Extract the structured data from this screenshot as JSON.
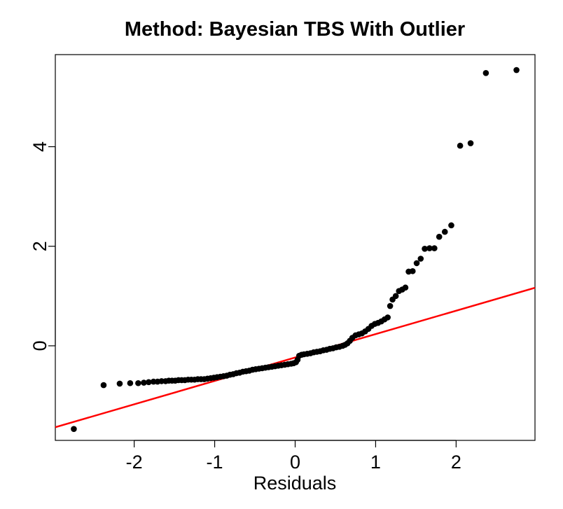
{
  "chart_data": {
    "type": "scatter",
    "title": "Method: Bayesian TBS With Outlier",
    "xlabel": "Residuals",
    "ylabel": "",
    "xlim": [
      -2.98,
      2.98
    ],
    "ylim": [
      -1.9,
      5.85
    ],
    "xticks": [
      -2,
      -1,
      0,
      1,
      2
    ],
    "xtick_labels": [
      "-2",
      "-1",
      "0",
      "1",
      "2"
    ],
    "yticks": [
      0,
      2,
      4
    ],
    "ytick_labels": [
      "0",
      "2",
      "4"
    ],
    "grid": false,
    "legend": "none",
    "point_color": "#000000",
    "line_color": "#ff0000",
    "reference_line": {
      "intercept": -0.235,
      "slope": 0.47
    },
    "points": [
      [
        -2.75,
        -1.67
      ],
      [
        -2.38,
        -0.79
      ],
      [
        -2.18,
        -0.76
      ],
      [
        -2.05,
        -0.75
      ],
      [
        -1.95,
        -0.75
      ],
      [
        -1.88,
        -0.74
      ],
      [
        -1.82,
        -0.73
      ],
      [
        -1.76,
        -0.72
      ],
      [
        -1.71,
        -0.72
      ],
      [
        -1.66,
        -0.71
      ],
      [
        -1.61,
        -0.71
      ],
      [
        -1.57,
        -0.7
      ],
      [
        -1.53,
        -0.7
      ],
      [
        -1.49,
        -0.7
      ],
      [
        -1.45,
        -0.69
      ],
      [
        -1.41,
        -0.69
      ],
      [
        -1.37,
        -0.69
      ],
      [
        -1.33,
        -0.68
      ],
      [
        -1.29,
        -0.68
      ],
      [
        -1.25,
        -0.68
      ],
      [
        -1.21,
        -0.67
      ],
      [
        -1.17,
        -0.67
      ],
      [
        -1.13,
        -0.67
      ],
      [
        -1.09,
        -0.66
      ],
      [
        -1.05,
        -0.65
      ],
      [
        -1.01,
        -0.64
      ],
      [
        -0.97,
        -0.63
      ],
      [
        -0.93,
        -0.62
      ],
      [
        -0.89,
        -0.61
      ],
      [
        -0.85,
        -0.6
      ],
      [
        -0.81,
        -0.58
      ],
      [
        -0.77,
        -0.57
      ],
      [
        -0.73,
        -0.55
      ],
      [
        -0.69,
        -0.54
      ],
      [
        -0.65,
        -0.52
      ],
      [
        -0.61,
        -0.51
      ],
      [
        -0.57,
        -0.5
      ],
      [
        -0.53,
        -0.48
      ],
      [
        -0.49,
        -0.47
      ],
      [
        -0.45,
        -0.46
      ],
      [
        -0.41,
        -0.45
      ],
      [
        -0.37,
        -0.44
      ],
      [
        -0.33,
        -0.43
      ],
      [
        -0.29,
        -0.42
      ],
      [
        -0.25,
        -0.41
      ],
      [
        -0.21,
        -0.4
      ],
      [
        -0.17,
        -0.39
      ],
      [
        -0.13,
        -0.38
      ],
      [
        -0.09,
        -0.37
      ],
      [
        -0.05,
        -0.36
      ],
      [
        -0.02,
        -0.35
      ],
      [
        0.01,
        -0.33
      ],
      [
        0.03,
        -0.28
      ],
      [
        0.05,
        -0.2
      ],
      [
        0.08,
        -0.18
      ],
      [
        0.11,
        -0.17
      ],
      [
        0.15,
        -0.16
      ],
      [
        0.19,
        -0.15
      ],
      [
        0.23,
        -0.13
      ],
      [
        0.27,
        -0.12
      ],
      [
        0.31,
        -0.11
      ],
      [
        0.35,
        -0.09
      ],
      [
        0.39,
        -0.08
      ],
      [
        0.43,
        -0.06
      ],
      [
        0.47,
        -0.05
      ],
      [
        0.51,
        -0.03
      ],
      [
        0.55,
        -0.02
      ],
      [
        0.59,
        0.0
      ],
      [
        0.62,
        0.02
      ],
      [
        0.65,
        0.05
      ],
      [
        0.68,
        0.1
      ],
      [
        0.71,
        0.16
      ],
      [
        0.75,
        0.21
      ],
      [
        0.79,
        0.23
      ],
      [
        0.83,
        0.25
      ],
      [
        0.87,
        0.29
      ],
      [
        0.91,
        0.34
      ],
      [
        0.95,
        0.4
      ],
      [
        0.99,
        0.44
      ],
      [
        1.03,
        0.46
      ],
      [
        1.07,
        0.49
      ],
      [
        1.11,
        0.53
      ],
      [
        1.15,
        0.57
      ],
      [
        1.18,
        0.8
      ],
      [
        1.21,
        0.93
      ],
      [
        1.25,
        1.0
      ],
      [
        1.29,
        1.1
      ],
      [
        1.33,
        1.13
      ],
      [
        1.37,
        1.17
      ],
      [
        1.41,
        1.49
      ],
      [
        1.46,
        1.5
      ],
      [
        1.51,
        1.66
      ],
      [
        1.56,
        1.75
      ],
      [
        1.61,
        1.95
      ],
      [
        1.67,
        1.96
      ],
      [
        1.73,
        1.96
      ],
      [
        1.79,
        2.19
      ],
      [
        1.86,
        2.29
      ],
      [
        1.94,
        2.42
      ],
      [
        2.05,
        4.02
      ],
      [
        2.18,
        4.07
      ],
      [
        2.37,
        5.48
      ],
      [
        2.75,
        5.54
      ]
    ]
  }
}
